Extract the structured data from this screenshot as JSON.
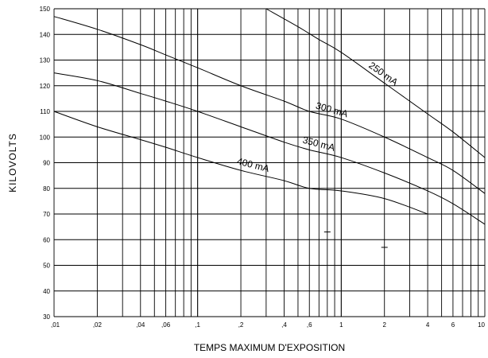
{
  "chart_data": {
    "type": "line",
    "title": "",
    "xlabel": "TEMPS MAXIMUM D'EXPOSITION",
    "ylabel": "KILOVOLTS",
    "x_scale": "log",
    "xlim": [
      0.01,
      10
    ],
    "ylim": [
      30,
      150
    ],
    "grid": true,
    "x_ticks": [
      {
        "value": 0.01,
        "label": ",01"
      },
      {
        "value": 0.02,
        "label": ",02"
      },
      {
        "value": 0.04,
        "label": ",04"
      },
      {
        "value": 0.06,
        "label": ",06"
      },
      {
        "value": 0.1,
        "label": ",1"
      },
      {
        "value": 0.2,
        "label": ",2"
      },
      {
        "value": 0.4,
        "label": ",4"
      },
      {
        "value": 0.6,
        "label": ",6"
      },
      {
        "value": 1,
        "label": "1"
      },
      {
        "value": 2,
        "label": "2"
      },
      {
        "value": 4,
        "label": "4"
      },
      {
        "value": 6,
        "label": "6"
      },
      {
        "value": 10,
        "label": "10"
      }
    ],
    "y_ticks": [
      "30",
      "40",
      "50",
      "60",
      "70",
      "80",
      "90",
      "100",
      "110",
      "120",
      "130",
      "140",
      "150"
    ],
    "series": [
      {
        "name": "250 mA",
        "x": [
          0.3,
          0.5,
          0.7,
          1,
          2,
          4,
          6,
          10
        ],
        "y": [
          150,
          143,
          138,
          133,
          121,
          109,
          102,
          92
        ]
      },
      {
        "name": "300 mA",
        "x": [
          0.01,
          0.02,
          0.04,
          0.06,
          0.1,
          0.2,
          0.4,
          0.6,
          1,
          2,
          4,
          6,
          10
        ],
        "y": [
          147,
          142,
          136,
          132,
          127,
          120,
          114,
          110,
          107,
          100,
          92,
          87,
          78
        ]
      },
      {
        "name": "350 mA",
        "x": [
          0.01,
          0.02,
          0.04,
          0.06,
          0.1,
          0.2,
          0.4,
          0.6,
          1,
          2,
          4,
          6,
          10
        ],
        "y": [
          125,
          122,
          117,
          114,
          110,
          104,
          98,
          95,
          92,
          86,
          79,
          74,
          66
        ]
      },
      {
        "name": "400 mA",
        "x": [
          0.01,
          0.02,
          0.04,
          0.06,
          0.1,
          0.2,
          0.4,
          0.6,
          1,
          2,
          4
        ],
        "y": [
          110,
          104,
          99,
          96,
          92,
          87,
          83,
          80,
          79,
          76,
          70
        ]
      }
    ],
    "marks": [
      {
        "x": 0.8,
        "y": 63
      },
      {
        "x": 2,
        "y": 57
      }
    ]
  }
}
